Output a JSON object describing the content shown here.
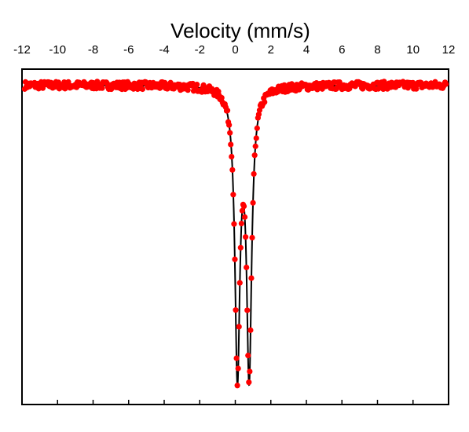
{
  "chart_data": {
    "type": "scatter",
    "title": "",
    "xlabel": "Velocity (mm/s)",
    "ylabel": "",
    "xlim": [
      -12,
      12
    ],
    "xticks": [
      -12,
      -10,
      -8,
      -6,
      -4,
      -2,
      0,
      2,
      4,
      6,
      8,
      10,
      12
    ],
    "x_axis_position": "top",
    "y_tick_labels_shown": false,
    "grid": false,
    "legend": "none",
    "ylim": [
      0.9,
      1.005
    ],
    "series": [
      {
        "style": "markers",
        "color": "#ff0000",
        "model": "two-lorentzian-doublet",
        "baseline": 1.0,
        "noise_amplitude": 0.0012,
        "peaks": [
          {
            "center": 0.12,
            "depth": 0.0885,
            "hwhm": 0.17
          },
          {
            "center": 0.78,
            "depth": 0.0885,
            "hwhm": 0.17
          }
        ],
        "x_start": -11.85,
        "x_end": 11.85,
        "point_count": 512
      },
      {
        "style": "line",
        "color": "#000000",
        "model": "fit",
        "baseline": 1.0,
        "peaks": [
          {
            "center": 0.12,
            "depth": 0.0885,
            "hwhm": 0.17
          },
          {
            "center": 0.78,
            "depth": 0.0885,
            "hwhm": 0.17
          }
        ]
      }
    ]
  }
}
